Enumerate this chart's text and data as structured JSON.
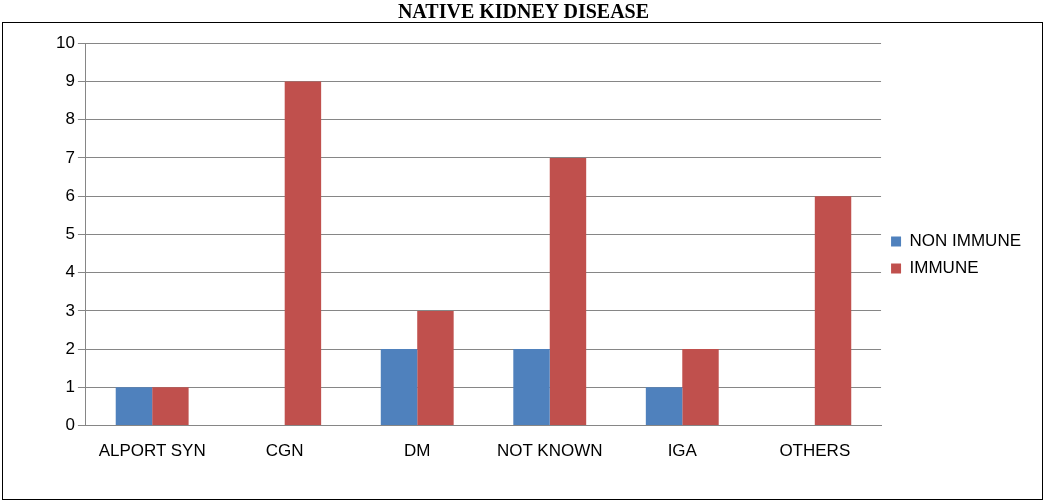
{
  "chart_data": {
    "type": "bar",
    "title": "NATIVE KIDNEY DISEASE",
    "categories": [
      "ALPORT SYN",
      "CGN",
      "DM",
      "NOT KNOWN",
      "IGA",
      "OTHERS"
    ],
    "series": [
      {
        "name": "NON IMMUNE",
        "color": "#4f81bd",
        "values": [
          1,
          0,
          2,
          2,
          1,
          0
        ]
      },
      {
        "name": "IMMUNE",
        "color": "#c0504d",
        "values": [
          1,
          9,
          3,
          7,
          2,
          6
        ]
      }
    ],
    "ylim": [
      0,
      10
    ],
    "yticks": [
      0,
      1,
      2,
      3,
      4,
      5,
      6,
      7,
      8,
      9,
      10
    ],
    "grid": "y",
    "legend": "right"
  }
}
